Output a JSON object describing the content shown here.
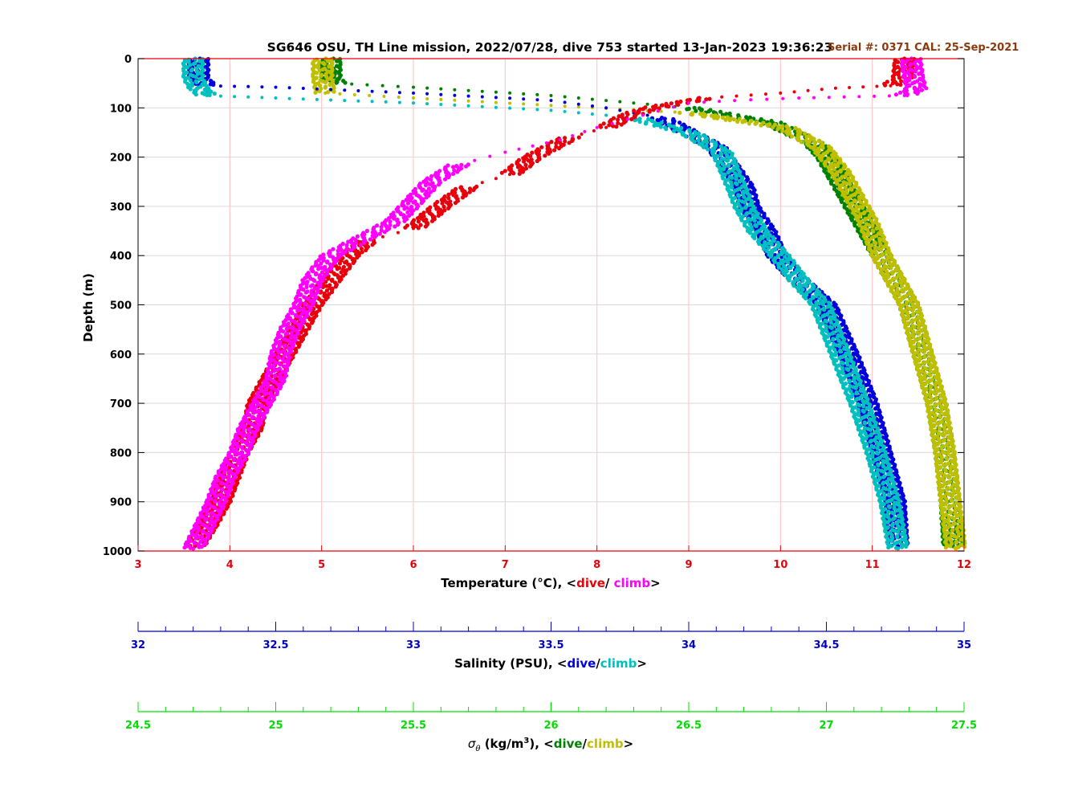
{
  "title": "SG646 OSU, TH Line mission, 2022/07/28, dive 753 started 13-Jan-2023 19:36:23",
  "serial_text": "Serial #: 0371  CAL: 25-Sep-2021",
  "colors": {
    "title": "#000000",
    "serial": "#8b3a0e",
    "temp_axis": "#e8000b",
    "sal_axis": "#0000cd",
    "sig_axis": "#00e000",
    "temp_dive": "#e8000b",
    "temp_climb": "#ff00ff",
    "sal_dive": "#0000dd",
    "sal_climb": "#00bfbf",
    "sig_dive": "#008000",
    "sig_climb": "#bfbf00",
    "grid": "#ffc0c0",
    "hgrid": "#d9d9d9"
  },
  "axes": {
    "depth": {
      "label": "Depth (m)",
      "range": [
        0,
        1000
      ],
      "ticks": [
        "0",
        "100",
        "200",
        "300",
        "400",
        "500",
        "600",
        "700",
        "800",
        "900",
        "1000"
      ]
    },
    "temperature": {
      "label_prefix": "Temperature (°C), <",
      "dive": "dive",
      "sep": "/ ",
      "climb": "climb",
      "suffix": ">",
      "range": [
        3,
        12
      ],
      "ticks": [
        "3",
        "4",
        "5",
        "6",
        "7",
        "8",
        "9",
        "10",
        "11",
        "12"
      ]
    },
    "salinity": {
      "label_prefix": "Salinity (PSU), <",
      "dive": "dive",
      "sep": "/",
      "climb": "climb",
      "suffix": ">",
      "range": [
        32,
        35
      ],
      "ticks": [
        "32",
        "32.5",
        "33",
        "33.5",
        "34",
        "34.5",
        "35"
      ]
    },
    "sigma": {
      "label_symbol": "σ",
      "label_sub": "θ",
      "label_mid": " (kg/m",
      "label_sup": "3",
      "label_prefix": "), <",
      "dive": "dive",
      "sep": "/",
      "climb": "climb",
      "suffix": ">",
      "range": [
        24.5,
        27.5
      ],
      "ticks": [
        "24.5",
        "25",
        "25.5",
        "26",
        "26.5",
        "27",
        "27.5"
      ]
    }
  },
  "chart_data": {
    "type": "scatter",
    "title": "SG646 OSU, TH Line mission, 2022/07/28, dive 753 started 13-Jan-2023 19:36:23",
    "ylabel": "Depth (m)",
    "ylim": [
      0,
      1000
    ],
    "y_reversed": true,
    "grid": true,
    "series": [
      {
        "name": "dive",
        "quantity": "temperature",
        "axis": "temperature",
        "points": [
          [
            11.35,
            0
          ],
          [
            11.33,
            40
          ],
          [
            11.2,
            55
          ],
          [
            10.6,
            60
          ],
          [
            10.0,
            70
          ],
          [
            9.2,
            80
          ],
          [
            8.9,
            90
          ],
          [
            8.6,
            100
          ],
          [
            8.35,
            115
          ],
          [
            8.1,
            140
          ],
          [
            7.7,
            160
          ],
          [
            7.3,
            200
          ],
          [
            7.05,
            235
          ],
          [
            6.6,
            260
          ],
          [
            6.3,
            300
          ],
          [
            6.0,
            345
          ],
          [
            5.5,
            370
          ],
          [
            5.3,
            400
          ],
          [
            5.1,
            450
          ],
          [
            4.9,
            500
          ],
          [
            4.75,
            550
          ],
          [
            4.6,
            600
          ],
          [
            4.45,
            650
          ],
          [
            4.3,
            700
          ],
          [
            4.25,
            750
          ],
          [
            4.1,
            800
          ],
          [
            4.0,
            850
          ],
          [
            3.9,
            900
          ],
          [
            3.75,
            950
          ],
          [
            3.62,
            990
          ]
        ]
      },
      {
        "name": "climb",
        "quantity": "temperature",
        "axis": "temperature",
        "points": [
          [
            11.42,
            0
          ],
          [
            11.45,
            40
          ],
          [
            11.48,
            60
          ],
          [
            11.35,
            75
          ],
          [
            10.2,
            80
          ],
          [
            9.5,
            85
          ],
          [
            9.0,
            90
          ],
          [
            8.5,
            115
          ],
          [
            8.0,
            140
          ],
          [
            7.6,
            165
          ],
          [
            7.0,
            190
          ],
          [
            6.5,
            215
          ],
          [
            6.2,
            250
          ],
          [
            6.0,
            290
          ],
          [
            5.8,
            330
          ],
          [
            5.5,
            360
          ],
          [
            5.1,
            400
          ],
          [
            4.9,
            450
          ],
          [
            4.8,
            500
          ],
          [
            4.65,
            550
          ],
          [
            4.55,
            600
          ],
          [
            4.5,
            650
          ],
          [
            4.35,
            700
          ],
          [
            4.2,
            750
          ],
          [
            4.1,
            800
          ],
          [
            3.95,
            850
          ],
          [
            3.85,
            900
          ],
          [
            3.72,
            950
          ],
          [
            3.6,
            995
          ]
        ]
      },
      {
        "name": "dive",
        "quantity": "salinity",
        "axis": "salinity",
        "points": [
          [
            32.22,
            0
          ],
          [
            32.22,
            40
          ],
          [
            32.25,
            55
          ],
          [
            32.5,
            58
          ],
          [
            33.0,
            70
          ],
          [
            33.5,
            85
          ],
          [
            33.7,
            100
          ],
          [
            33.9,
            120
          ],
          [
            34.0,
            150
          ],
          [
            34.1,
            180
          ],
          [
            34.15,
            220
          ],
          [
            34.2,
            260
          ],
          [
            34.22,
            300
          ],
          [
            34.28,
            350
          ],
          [
            34.32,
            400
          ],
          [
            34.4,
            450
          ],
          [
            34.5,
            500
          ],
          [
            34.58,
            600
          ],
          [
            34.65,
            700
          ],
          [
            34.7,
            800
          ],
          [
            34.75,
            900
          ],
          [
            34.76,
            990
          ]
        ]
      },
      {
        "name": "climb",
        "quantity": "salinity",
        "axis": "salinity",
        "points": [
          [
            32.2,
            0
          ],
          [
            32.2,
            40
          ],
          [
            32.22,
            60
          ],
          [
            32.25,
            75
          ],
          [
            32.5,
            80
          ],
          [
            33.0,
            90
          ],
          [
            33.5,
            105
          ],
          [
            33.8,
            120
          ],
          [
            34.0,
            150
          ],
          [
            34.12,
            190
          ],
          [
            34.15,
            230
          ],
          [
            34.18,
            270
          ],
          [
            34.2,
            300
          ],
          [
            34.25,
            350
          ],
          [
            34.33,
            400
          ],
          [
            34.4,
            450
          ],
          [
            34.48,
            500
          ],
          [
            34.55,
            600
          ],
          [
            34.62,
            700
          ],
          [
            34.68,
            800
          ],
          [
            34.73,
            900
          ],
          [
            34.76,
            995
          ]
        ]
      },
      {
        "name": "dive",
        "quantity": "sigma_theta",
        "axis": "sigma",
        "points": [
          [
            25.2,
            0
          ],
          [
            25.2,
            40
          ],
          [
            25.22,
            50
          ],
          [
            25.5,
            58
          ],
          [
            26.0,
            75
          ],
          [
            26.5,
            100
          ],
          [
            26.8,
            130
          ],
          [
            26.95,
            170
          ],
          [
            27.0,
            200
          ],
          [
            27.05,
            250
          ],
          [
            27.1,
            300
          ],
          [
            27.15,
            350
          ],
          [
            27.2,
            400
          ],
          [
            27.25,
            450
          ],
          [
            27.3,
            500
          ],
          [
            27.35,
            600
          ],
          [
            27.4,
            700
          ],
          [
            27.43,
            800
          ],
          [
            27.45,
            900
          ],
          [
            27.46,
            990
          ]
        ]
      },
      {
        "name": "climb",
        "quantity": "sigma_theta",
        "axis": "sigma",
        "points": [
          [
            25.17,
            0
          ],
          [
            25.17,
            40
          ],
          [
            25.18,
            70
          ],
          [
            25.5,
            80
          ],
          [
            26.0,
            95
          ],
          [
            26.5,
            110
          ],
          [
            26.85,
            140
          ],
          [
            26.98,
            180
          ],
          [
            27.05,
            230
          ],
          [
            27.1,
            280
          ],
          [
            27.15,
            330
          ],
          [
            27.2,
            400
          ],
          [
            27.25,
            450
          ],
          [
            27.3,
            500
          ],
          [
            27.35,
            600
          ],
          [
            27.4,
            700
          ],
          [
            27.43,
            800
          ],
          [
            27.45,
            900
          ],
          [
            27.47,
            995
          ]
        ]
      }
    ]
  }
}
